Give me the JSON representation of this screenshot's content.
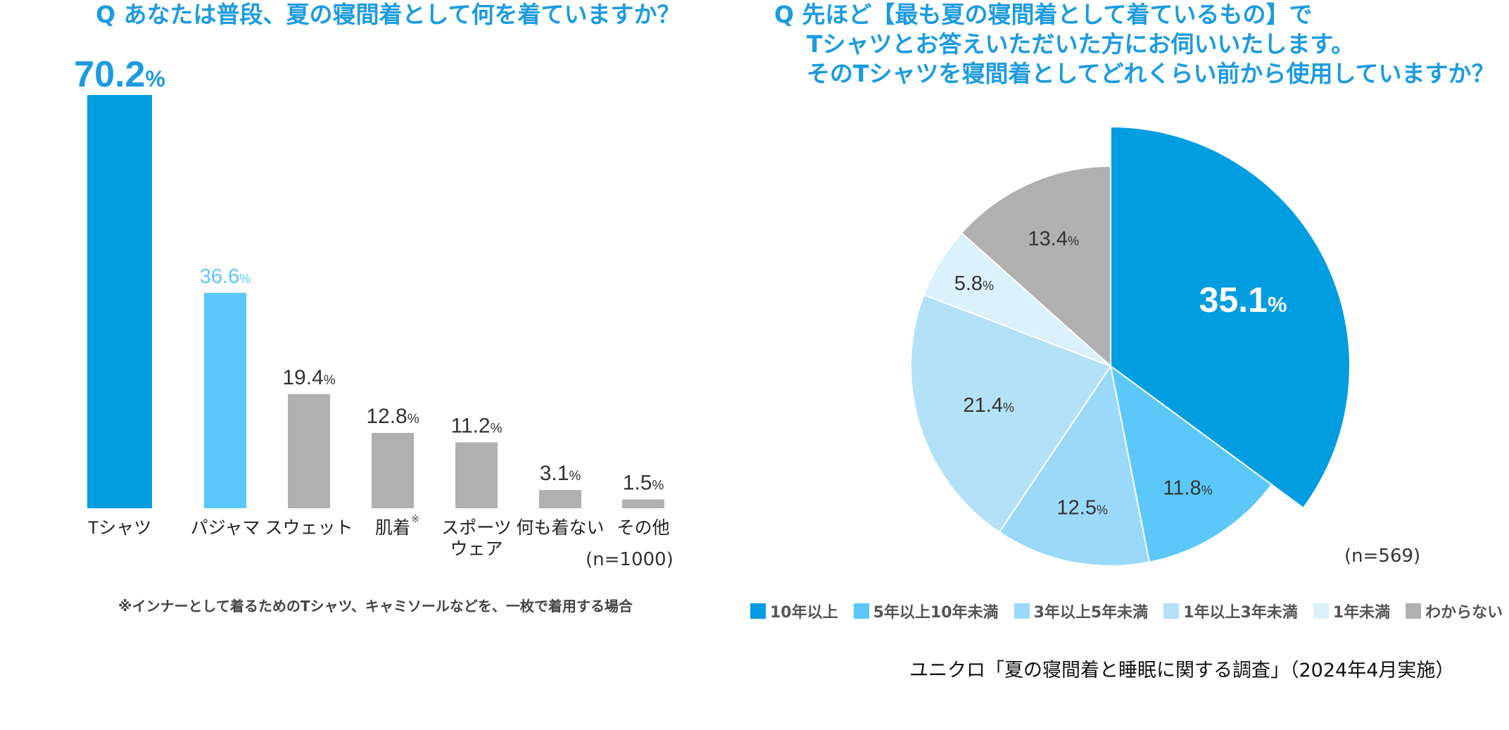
{
  "bar_chart_question": "Q あなたは普段、夏の寝間着として何を着ていますか？",
  "pie_chart_question": {
    "line1": "Q 先ほど【最も夏の寝間着として着ているもの】で",
    "line2": "Tシャツとお答えいただいた方にお伺いいたします。",
    "line3": "そのTシャツを寝間着としてどれくらい前から使用していますか？"
  },
  "bar_n": "(n=1000)",
  "pie_n": "(n=569)",
  "footnote": "※インナーとして着るためのTシャツ、キャミソールなどを、一枚で着用する場合",
  "source": "ユニクロ「夏の寝間着と睡眠に関する調査」（2024年4月実施）",
  "colors": {
    "primary": "#009de0",
    "secondary": "#5cc8fa",
    "gray": "#b0b0b0",
    "pie": [
      "#009de0",
      "#5cc8fa",
      "#9bd9fa",
      "#b3e1f7",
      "#dbf1fc",
      "#b0b0b0"
    ]
  },
  "chart_data": [
    {
      "type": "bar",
      "title": "Q あなたは普段、夏の寝間着として何を着ていますか？",
      "categories": [
        "Tシャツ",
        "パジャマ",
        "スウェット",
        "肌着※",
        "スポーツウェア",
        "何も着ない",
        "その他"
      ],
      "category_lines": [
        [
          "Tシャツ"
        ],
        [
          "パジャマ"
        ],
        [
          "スウェット"
        ],
        [
          "肌着"
        ],
        [
          "スポーツ",
          "ウェア"
        ],
        [
          "何も着ない"
        ],
        [
          "その他"
        ]
      ],
      "values": [
        70.2,
        36.6,
        19.4,
        12.8,
        11.2,
        3.1,
        1.5
      ],
      "value_labels": [
        "70.2",
        "36.6",
        "19.4",
        "12.8",
        "11.2",
        "3.1",
        "1.5"
      ],
      "unit": "%",
      "bar_colors": [
        "#009de0",
        "#5cc8fa",
        "#b0b0b0",
        "#b0b0b0",
        "#b0b0b0",
        "#b0b0b0",
        "#b0b0b0"
      ],
      "label_colors": [
        "#1c9be0",
        "#5cc8fa",
        "#333333",
        "#333333",
        "#333333",
        "#333333",
        "#333333"
      ],
      "ylim": [
        0,
        70.2
      ],
      "n": "(n=1000)"
    },
    {
      "type": "pie",
      "title": "そのTシャツを寝間着としてどれくらい前から使用していますか？",
      "labels": [
        "10年以上",
        "5年以上10年未満",
        "3年以上5年未満",
        "1年以上3年未満",
        "1年未満",
        "わからない"
      ],
      "values": [
        35.1,
        11.8,
        12.5,
        21.4,
        5.8,
        13.4
      ],
      "value_labels": [
        "35.1",
        "11.8",
        "12.5",
        "21.4",
        "5.8",
        "13.4"
      ],
      "unit": "%",
      "exploded": "10年以上",
      "legend_position": "bottom",
      "n": "(n=569)"
    }
  ]
}
